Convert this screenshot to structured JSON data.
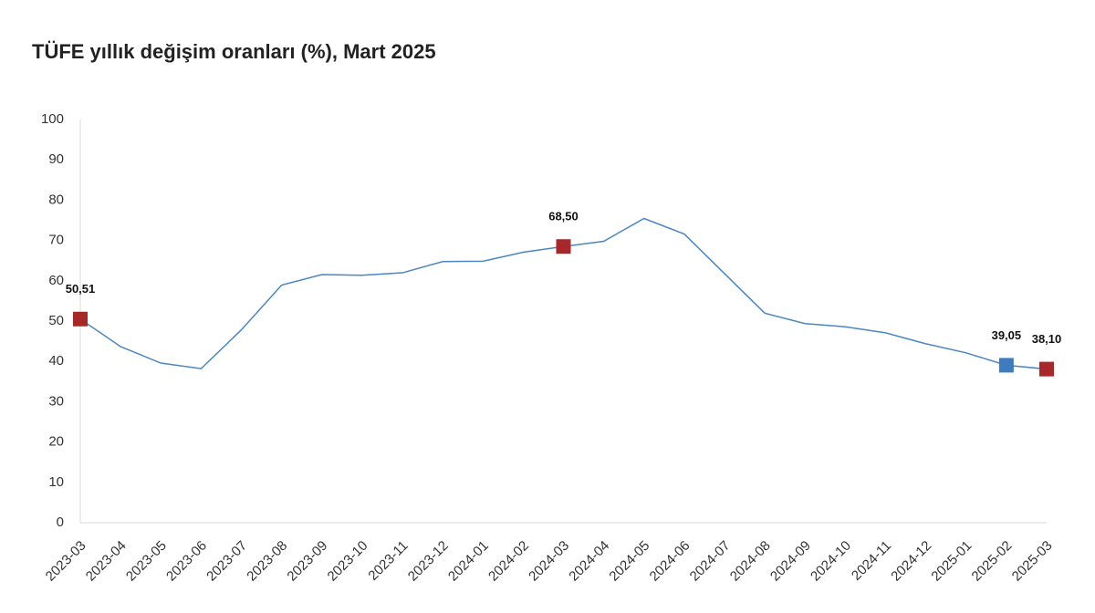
{
  "chart_data": {
    "type": "line",
    "title": "TÜFE yıllık değişim oranları (%), Mart 2025",
    "categories": [
      "2023-03",
      "2023-04",
      "2023-05",
      "2023-06",
      "2023-07",
      "2023-08",
      "2023-09",
      "2023-10",
      "2023-11",
      "2023-12",
      "2024-01",
      "2024-02",
      "2024-03",
      "2024-04",
      "2024-05",
      "2024-06",
      "2024-07",
      "2024-08",
      "2024-09",
      "2024-10",
      "2024-11",
      "2024-12",
      "2025-01",
      "2025-02",
      "2025-03"
    ],
    "values": [
      50.51,
      43.68,
      39.59,
      38.21,
      47.83,
      58.94,
      61.53,
      61.36,
      61.98,
      64.77,
      64.86,
      67.07,
      68.5,
      69.8,
      75.45,
      71.6,
      61.78,
      51.97,
      49.38,
      48.58,
      47.09,
      44.38,
      42.12,
      39.05,
      38.1
    ],
    "value_labels": [
      "50,51",
      null,
      null,
      null,
      null,
      null,
      null,
      null,
      null,
      null,
      null,
      null,
      "68,50",
      null,
      null,
      null,
      null,
      null,
      null,
      null,
      null,
      null,
      null,
      "39,05",
      "38,10"
    ],
    "marker_colors": [
      "#a8282a",
      null,
      null,
      null,
      null,
      null,
      null,
      null,
      null,
      null,
      null,
      null,
      "#a8282a",
      null,
      null,
      null,
      null,
      null,
      null,
      null,
      null,
      null,
      null,
      "#3e7bbf",
      "#a8282a"
    ],
    "color": "#4a86c5",
    "ylim": [
      0,
      100
    ],
    "yticks": [
      0,
      10,
      20,
      30,
      40,
      50,
      60,
      70,
      80,
      90,
      100
    ],
    "grid": false
  }
}
